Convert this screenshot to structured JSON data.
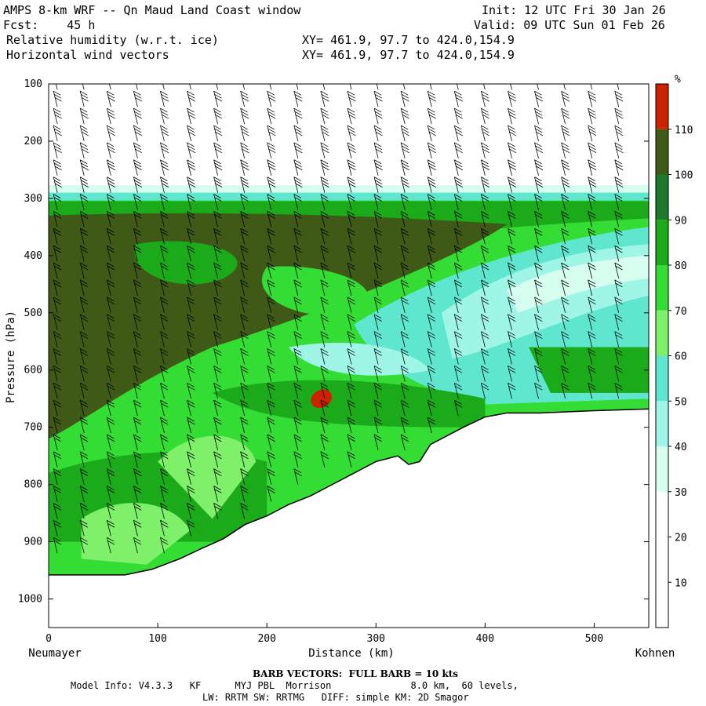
{
  "header": {
    "title": "AMPS 8-km WRF -- Qn Maud Land Coast window",
    "init": "Init: 12 UTC Fri 30 Jan 26",
    "fcst": "Fcst:    45 h",
    "valid": "Valid: 09 UTC Sun 01 Feb 26",
    "field1": "Relative humidity (w.r.t. ice)",
    "field1_xy": "XY= 461.9, 97.7 to 424.0,154.9",
    "field2": "Horizontal wind vectors",
    "field2_xy": "XY= 461.9, 97.7 to 424.0,154.9"
  },
  "footer": {
    "barb_note": "BARB VECTORS:  FULL BARB = 10 kts",
    "model_info_1": "Model Info: V4.3.3   KF      MYJ PBL  Morrison              8.0 km,  60 levels,",
    "model_info_2": "LW: RRTM SW: RRTMG   DIFF: simple KM: 2D Smagor"
  },
  "colors": {
    "rh_10_20": "#ffffff",
    "rh_20_30": "#ffffff",
    "rh_30_40": "#d6fff0",
    "rh_40_50": "#9ff5e6",
    "rh_50_60": "#5fe6cf",
    "rh_60_70": "#7ff06a",
    "rh_70_80": "#33dd33",
    "rh_80_90": "#1aaa1a",
    "rh_90_100": "#1c7a2c",
    "rh_100_110": "#3f5a16",
    "rh_110_plus": "#cc2200"
  },
  "chart_data": {
    "type": "heatmap",
    "title": "AMPS 8-km WRF -- Qn Maud Land Coast window",
    "xlabel": "Distance (km)",
    "ylabel": "Pressure (hPa)",
    "x_left_label": "Neumayer",
    "x_right_label": "Kohnen",
    "xlim": [
      0,
      550
    ],
    "ylim": [
      100,
      1050
    ],
    "y_inverted": true,
    "x_ticks": [
      0,
      100,
      200,
      300,
      400,
      500
    ],
    "y_ticks": [
      100,
      200,
      300,
      400,
      500,
      600,
      700,
      800,
      900,
      1000
    ],
    "colorbar": {
      "unit": "%",
      "levels": [
        10,
        20,
        30,
        40,
        50,
        60,
        70,
        80,
        90,
        100,
        110
      ]
    },
    "terrain_surface_hpa": {
      "x": [
        0,
        40,
        70,
        95,
        120,
        140,
        160,
        180,
        200,
        220,
        240,
        260,
        280,
        300,
        320,
        330,
        340,
        350,
        360,
        380,
        400,
        420,
        450,
        500,
        550
      ],
      "p": [
        958,
        958,
        958,
        948,
        930,
        912,
        895,
        870,
        855,
        835,
        820,
        800,
        780,
        760,
        750,
        765,
        760,
        730,
        720,
        700,
        682,
        675,
        675,
        671,
        668
      ]
    },
    "moist_layer_top_hpa": 285,
    "max_rh_feature": {
      "x_km": 250,
      "p_hpa": 650,
      "value": "110+"
    },
    "wind_barbs": {
      "full_barb_kts": 10
    }
  }
}
